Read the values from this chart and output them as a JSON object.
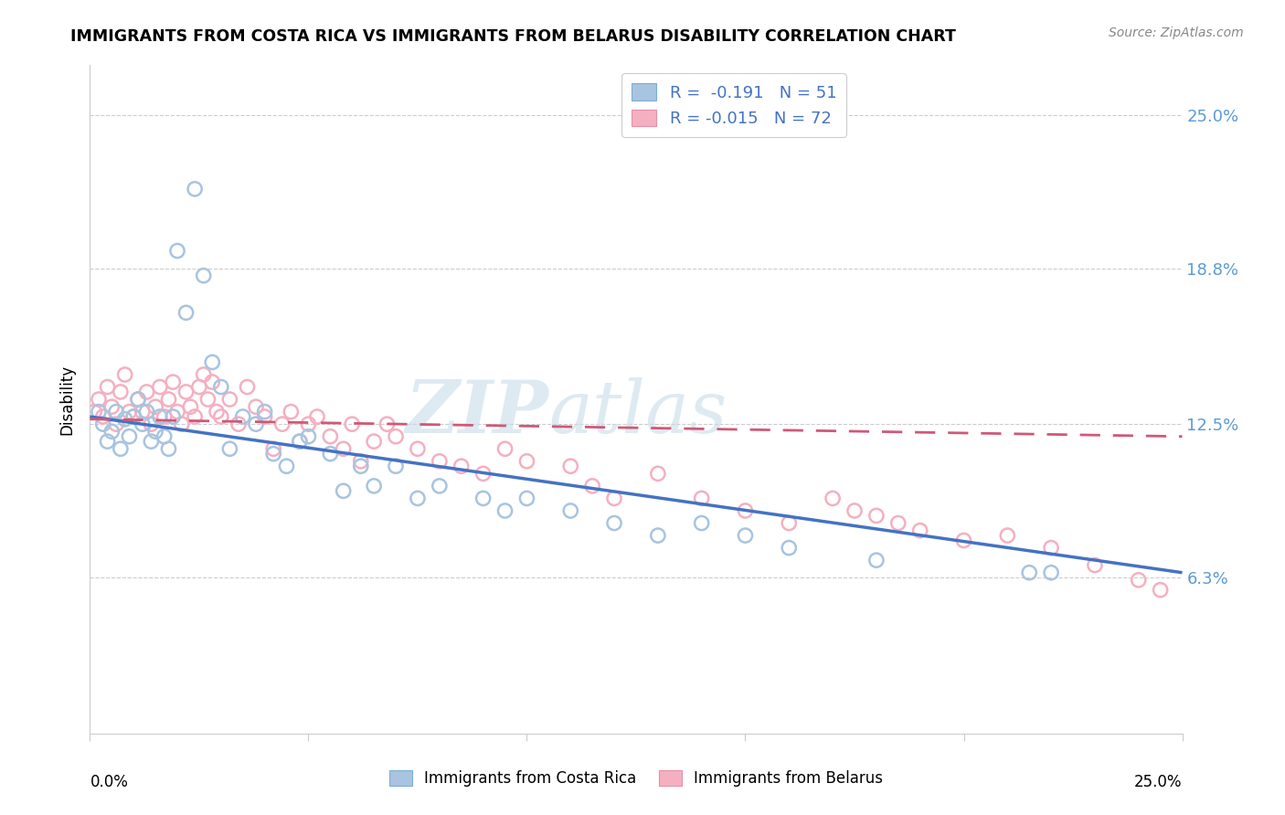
{
  "title": "IMMIGRANTS FROM COSTA RICA VS IMMIGRANTS FROM BELARUS DISABILITY CORRELATION CHART",
  "source": "Source: ZipAtlas.com",
  "ylabel": "Disability",
  "ytick_labels": [
    "25.0%",
    "18.8%",
    "12.5%",
    "6.3%"
  ],
  "ytick_values": [
    0.25,
    0.188,
    0.125,
    0.063
  ],
  "xlim": [
    0.0,
    0.25
  ],
  "ylim": [
    0.0,
    0.27
  ],
  "color_blue": "#a8c4e0",
  "color_blue_edge": "#7aafd4",
  "color_pink": "#f4b0c0",
  "color_pink_edge": "#e890a8",
  "trendline_blue": "#4472c4",
  "trendline_pink": "#d05878",
  "cr_trend_x0": 0.0,
  "cr_trend_y0": 0.128,
  "cr_trend_x1": 0.25,
  "cr_trend_y1": 0.065,
  "bl_trend_x0": 0.0,
  "bl_trend_y0": 0.127,
  "bl_trend_x1": 0.25,
  "bl_trend_y1": 0.12,
  "costa_rica_x": [
    0.002,
    0.003,
    0.004,
    0.005,
    0.006,
    0.007,
    0.008,
    0.009,
    0.01,
    0.011,
    0.012,
    0.013,
    0.014,
    0.015,
    0.016,
    0.017,
    0.018,
    0.019,
    0.02,
    0.022,
    0.024,
    0.026,
    0.028,
    0.03,
    0.032,
    0.035,
    0.038,
    0.04,
    0.042,
    0.045,
    0.048,
    0.05,
    0.055,
    0.058,
    0.062,
    0.065,
    0.07,
    0.075,
    0.08,
    0.09,
    0.095,
    0.1,
    0.11,
    0.12,
    0.13,
    0.14,
    0.15,
    0.16,
    0.18,
    0.215,
    0.22
  ],
  "costa_rica_y": [
    0.13,
    0.125,
    0.118,
    0.122,
    0.13,
    0.115,
    0.127,
    0.12,
    0.128,
    0.135,
    0.125,
    0.13,
    0.118,
    0.122,
    0.128,
    0.12,
    0.115,
    0.128,
    0.195,
    0.17,
    0.22,
    0.185,
    0.15,
    0.14,
    0.115,
    0.128,
    0.125,
    0.13,
    0.113,
    0.108,
    0.118,
    0.12,
    0.113,
    0.098,
    0.108,
    0.1,
    0.108,
    0.095,
    0.1,
    0.095,
    0.09,
    0.095,
    0.09,
    0.085,
    0.08,
    0.085,
    0.08,
    0.075,
    0.07,
    0.065,
    0.065
  ],
  "belarus_x": [
    0.001,
    0.002,
    0.003,
    0.004,
    0.005,
    0.006,
    0.007,
    0.008,
    0.009,
    0.01,
    0.011,
    0.012,
    0.013,
    0.014,
    0.015,
    0.016,
    0.017,
    0.018,
    0.019,
    0.02,
    0.021,
    0.022,
    0.023,
    0.024,
    0.025,
    0.026,
    0.027,
    0.028,
    0.029,
    0.03,
    0.032,
    0.034,
    0.036,
    0.038,
    0.04,
    0.042,
    0.044,
    0.046,
    0.048,
    0.05,
    0.052,
    0.055,
    0.058,
    0.06,
    0.062,
    0.065,
    0.068,
    0.07,
    0.075,
    0.08,
    0.085,
    0.09,
    0.095,
    0.1,
    0.11,
    0.115,
    0.12,
    0.13,
    0.14,
    0.15,
    0.16,
    0.17,
    0.175,
    0.18,
    0.185,
    0.19,
    0.2,
    0.21,
    0.22,
    0.23,
    0.24,
    0.245
  ],
  "belarus_y": [
    0.13,
    0.135,
    0.128,
    0.14,
    0.132,
    0.125,
    0.138,
    0.145,
    0.13,
    0.128,
    0.135,
    0.13,
    0.138,
    0.125,
    0.132,
    0.14,
    0.128,
    0.135,
    0.142,
    0.13,
    0.125,
    0.138,
    0.132,
    0.128,
    0.14,
    0.145,
    0.135,
    0.142,
    0.13,
    0.128,
    0.135,
    0.125,
    0.14,
    0.132,
    0.128,
    0.115,
    0.125,
    0.13,
    0.118,
    0.125,
    0.128,
    0.12,
    0.115,
    0.125,
    0.11,
    0.118,
    0.125,
    0.12,
    0.115,
    0.11,
    0.108,
    0.105,
    0.115,
    0.11,
    0.108,
    0.1,
    0.095,
    0.105,
    0.095,
    0.09,
    0.085,
    0.095,
    0.09,
    0.088,
    0.085,
    0.082,
    0.078,
    0.08,
    0.075,
    0.068,
    0.062,
    0.058
  ]
}
